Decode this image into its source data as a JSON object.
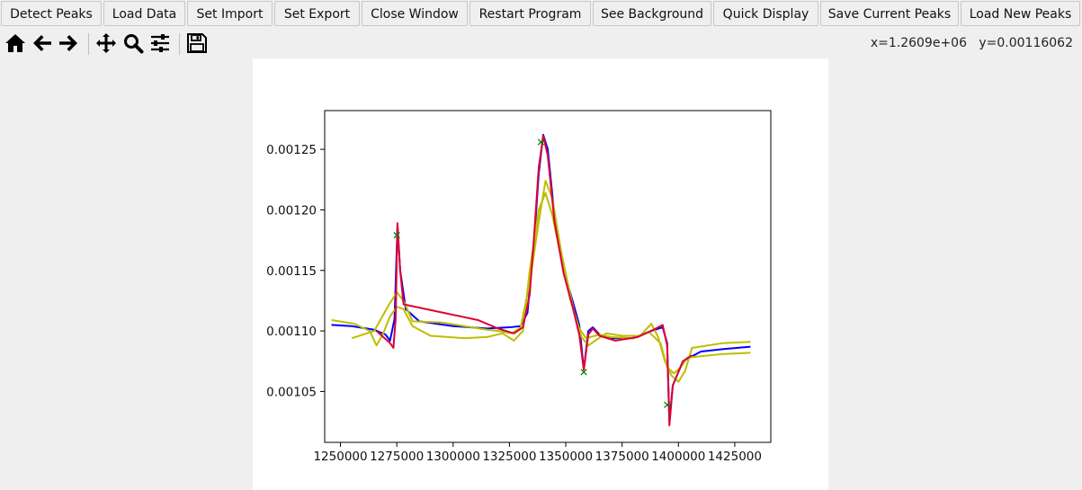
{
  "toolbar": {
    "buttons": [
      {
        "label": "Detect Peaks"
      },
      {
        "label": "Load Data"
      },
      {
        "label": "Set Import"
      },
      {
        "label": "Set Export"
      },
      {
        "label": "Close Window"
      },
      {
        "label": "Restart Program"
      },
      {
        "label": "See Background"
      },
      {
        "label": "Quick Display"
      },
      {
        "label": "Save Current Peaks"
      },
      {
        "label": "Load New Peaks"
      }
    ]
  },
  "nav_tools": [
    {
      "icon": "home-icon"
    },
    {
      "icon": "back-arrow-icon"
    },
    {
      "icon": "forward-arrow-icon"
    },
    {
      "icon": "pan-move-icon"
    },
    {
      "icon": "zoom-magnifier-icon"
    },
    {
      "icon": "subplots-config-icon"
    },
    {
      "icon": "save-floppy-icon"
    }
  ],
  "coords": {
    "x_text": "x=1.2609e+06",
    "y_text": "y=0.00116062"
  },
  "colors": {
    "raw": "#0000ff",
    "fit": "#dd0033",
    "components": "#bdbd00",
    "peak_markers": "#008000"
  },
  "chart_data": {
    "type": "line",
    "xlim": [
      1243000,
      1441000
    ],
    "ylim": [
      0.001008,
      0.001282
    ],
    "xticks": [
      1250000,
      1275000,
      1300000,
      1325000,
      1350000,
      1375000,
      1400000,
      1425000
    ],
    "xtick_labels": [
      "1250000",
      "1275000",
      "1300000",
      "1325000",
      "1350000",
      "1375000",
      "1400000",
      "1425000"
    ],
    "yticks": [
      0.00105,
      0.0011,
      0.00115,
      0.0012,
      0.00125
    ],
    "ytick_labels": [
      "0.00105",
      "0.00110",
      "0.00115",
      "0.00120",
      "0.00125"
    ],
    "grid": false,
    "series": [
      {
        "role": "raw",
        "points": [
          [
            1246000,
            0.001105
          ],
          [
            1255000,
            0.001104
          ],
          [
            1265000,
            0.001101
          ],
          [
            1270000,
            0.001097
          ],
          [
            1272000,
            0.001092
          ],
          [
            1274000,
            0.00111
          ],
          [
            1275300,
            0.001187
          ],
          [
            1276500,
            0.00115
          ],
          [
            1279000,
            0.001118
          ],
          [
            1285000,
            0.001108
          ],
          [
            1300000,
            0.001104
          ],
          [
            1315000,
            0.001102
          ],
          [
            1325000,
            0.001103
          ],
          [
            1330000,
            0.001104
          ],
          [
            1333000,
            0.001115
          ],
          [
            1336000,
            0.001175
          ],
          [
            1338000,
            0.00123
          ],
          [
            1340000,
            0.001262
          ],
          [
            1342000,
            0.00125
          ],
          [
            1345000,
            0.001195
          ],
          [
            1349000,
            0.00115
          ],
          [
            1353000,
            0.001125
          ],
          [
            1356000,
            0.001105
          ],
          [
            1358000,
            0.001068
          ],
          [
            1360000,
            0.0011
          ],
          [
            1362000,
            0.001103
          ],
          [
            1365000,
            0.001097
          ],
          [
            1370000,
            0.001094
          ],
          [
            1380000,
            0.001094
          ],
          [
            1388000,
            0.0011
          ],
          [
            1393000,
            0.001103
          ],
          [
            1395000,
            0.00109
          ],
          [
            1396000,
            0.001025
          ],
          [
            1397500,
            0.001055
          ],
          [
            1402000,
            0.001075
          ],
          [
            1410000,
            0.001083
          ],
          [
            1420000,
            0.001085
          ],
          [
            1432000,
            0.001087
          ]
        ]
      },
      {
        "role": "fit",
        "points": [
          [
            1266000,
            0.0011
          ],
          [
            1272000,
            0.00109
          ],
          [
            1273500,
            0.001086
          ],
          [
            1274500,
            0.00111
          ],
          [
            1275300,
            0.001189
          ],
          [
            1276500,
            0.00115
          ],
          [
            1278000,
            0.001122
          ],
          [
            1311000,
            0.001109
          ],
          [
            1320000,
            0.001102
          ],
          [
            1327000,
            0.001098
          ],
          [
            1331000,
            0.001103
          ],
          [
            1334000,
            0.00113
          ],
          [
            1336000,
            0.00118
          ],
          [
            1338000,
            0.001235
          ],
          [
            1340000,
            0.001261
          ],
          [
            1342000,
            0.001245
          ],
          [
            1345000,
            0.00119
          ],
          [
            1349000,
            0.001148
          ],
          [
            1353000,
            0.00112
          ],
          [
            1356000,
            0.001097
          ],
          [
            1358000,
            0.001068
          ],
          [
            1360000,
            0.001097
          ],
          [
            1362000,
            0.001102
          ],
          [
            1365000,
            0.001096
          ],
          [
            1372000,
            0.001092
          ],
          [
            1382000,
            0.001095
          ],
          [
            1390000,
            0.001102
          ],
          [
            1393000,
            0.001105
          ],
          [
            1395000,
            0.001088
          ],
          [
            1396000,
            0.001022
          ],
          [
            1397500,
            0.001055
          ],
          [
            1402000,
            0.001075
          ],
          [
            1406000,
            0.00108
          ]
        ]
      },
      {
        "role": "component",
        "points": [
          [
            1255000,
            0.001094
          ],
          [
            1265000,
            0.0011
          ],
          [
            1271000,
            0.00112
          ],
          [
            1275000,
            0.001132
          ],
          [
            1278000,
            0.001125
          ],
          [
            1282000,
            0.001108
          ],
          [
            1295000,
            0.001107
          ],
          [
            1305000,
            0.001104
          ],
          [
            1315000,
            0.001101
          ],
          [
            1320000,
            0.0011
          ],
          [
            1326000,
            0.001098
          ],
          [
            1330000,
            0.001103
          ],
          [
            1334000,
            0.00114
          ],
          [
            1338000,
            0.00119
          ],
          [
            1341000,
            0.001224
          ],
          [
            1344000,
            0.00121
          ],
          [
            1348000,
            0.001165
          ],
          [
            1352000,
            0.00113
          ],
          [
            1355000,
            0.001105
          ],
          [
            1357000,
            0.001095
          ],
          [
            1360000,
            0.001088
          ],
          [
            1363000,
            0.001092
          ],
          [
            1368000,
            0.001098
          ],
          [
            1375000,
            0.001096
          ],
          [
            1383000,
            0.001096
          ],
          [
            1388000,
            0.001106
          ],
          [
            1391000,
            0.001095
          ],
          [
            1394000,
            0.001075
          ],
          [
            1397000,
            0.001063
          ],
          [
            1400000,
            0.001058
          ],
          [
            1403000,
            0.001067
          ],
          [
            1406000,
            0.001086
          ],
          [
            1420000,
            0.00109
          ],
          [
            1432000,
            0.001091
          ]
        ]
      },
      {
        "role": "component",
        "points": [
          [
            1246000,
            0.001109
          ],
          [
            1256000,
            0.001106
          ],
          [
            1263000,
            0.0011
          ],
          [
            1266000,
            0.001088
          ],
          [
            1269000,
            0.001098
          ],
          [
            1272000,
            0.001112
          ],
          [
            1275000,
            0.00112
          ],
          [
            1278000,
            0.001118
          ],
          [
            1282000,
            0.001104
          ],
          [
            1290000,
            0.001096
          ],
          [
            1305000,
            0.001094
          ],
          [
            1315000,
            0.001095
          ],
          [
            1322000,
            0.001098
          ],
          [
            1327000,
            0.001092
          ],
          [
            1331000,
            0.0011
          ],
          [
            1334000,
            0.00115
          ],
          [
            1338000,
            0.0012
          ],
          [
            1341000,
            0.001214
          ],
          [
            1344000,
            0.001196
          ],
          [
            1348000,
            0.00116
          ],
          [
            1352000,
            0.001126
          ],
          [
            1356000,
            0.001102
          ],
          [
            1359000,
            0.001094
          ],
          [
            1365000,
            0.001097
          ],
          [
            1370000,
            0.001095
          ],
          [
            1380000,
            0.001094
          ],
          [
            1387000,
            0.001099
          ],
          [
            1392000,
            0.00109
          ],
          [
            1395000,
            0.00107
          ],
          [
            1398000,
            0.001065
          ],
          [
            1401000,
            0.00107
          ],
          [
            1404000,
            0.001078
          ],
          [
            1420000,
            0.001081
          ],
          [
            1432000,
            0.001082
          ]
        ]
      }
    ],
    "peaks": [
      {
        "x": 1275000,
        "y": 0.001179
      },
      {
        "x": 1339000,
        "y": 0.001256
      },
      {
        "x": 1358000,
        "y": 0.001066
      },
      {
        "x": 1395000,
        "y": 0.001039
      }
    ]
  }
}
